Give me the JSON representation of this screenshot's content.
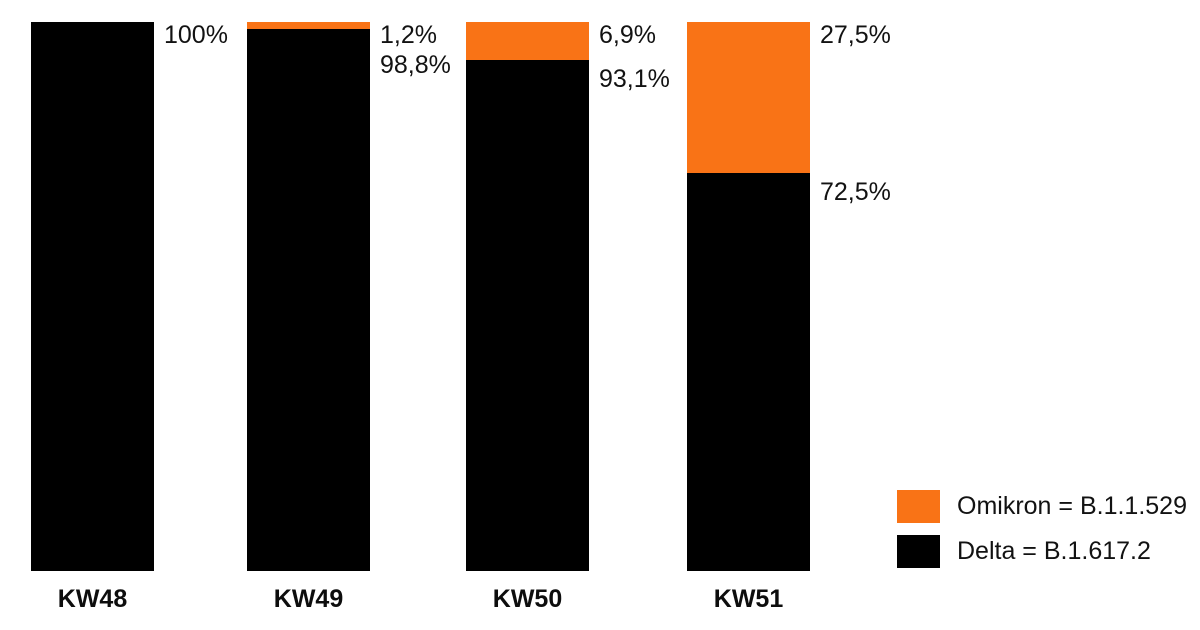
{
  "colors": {
    "omikron": "#F97316",
    "delta": "#000000",
    "background": "#ffffff",
    "label_text": "#121212"
  },
  "chart_data": {
    "type": "bar",
    "stacked": true,
    "orientation": "vertical",
    "title": "",
    "xlabel": "",
    "ylabel": "",
    "ylim": [
      0,
      100
    ],
    "grid": false,
    "legend_position": "bottom-right",
    "categories": [
      "KW48",
      "KW49",
      "KW50",
      "KW51"
    ],
    "series": [
      {
        "name": "Omikron = B.1.1.529",
        "color_key": "omikron",
        "values": [
          0,
          1.2,
          6.9,
          27.5
        ],
        "labels": [
          "",
          "1,2%",
          "6,9%",
          "27,5%"
        ]
      },
      {
        "name": "Delta = B.1.617.2",
        "color_key": "delta",
        "values": [
          100,
          98.8,
          93.1,
          72.5
        ],
        "labels": [
          "100%",
          "98,8%",
          "93,1%",
          "72,5%"
        ]
      }
    ]
  }
}
